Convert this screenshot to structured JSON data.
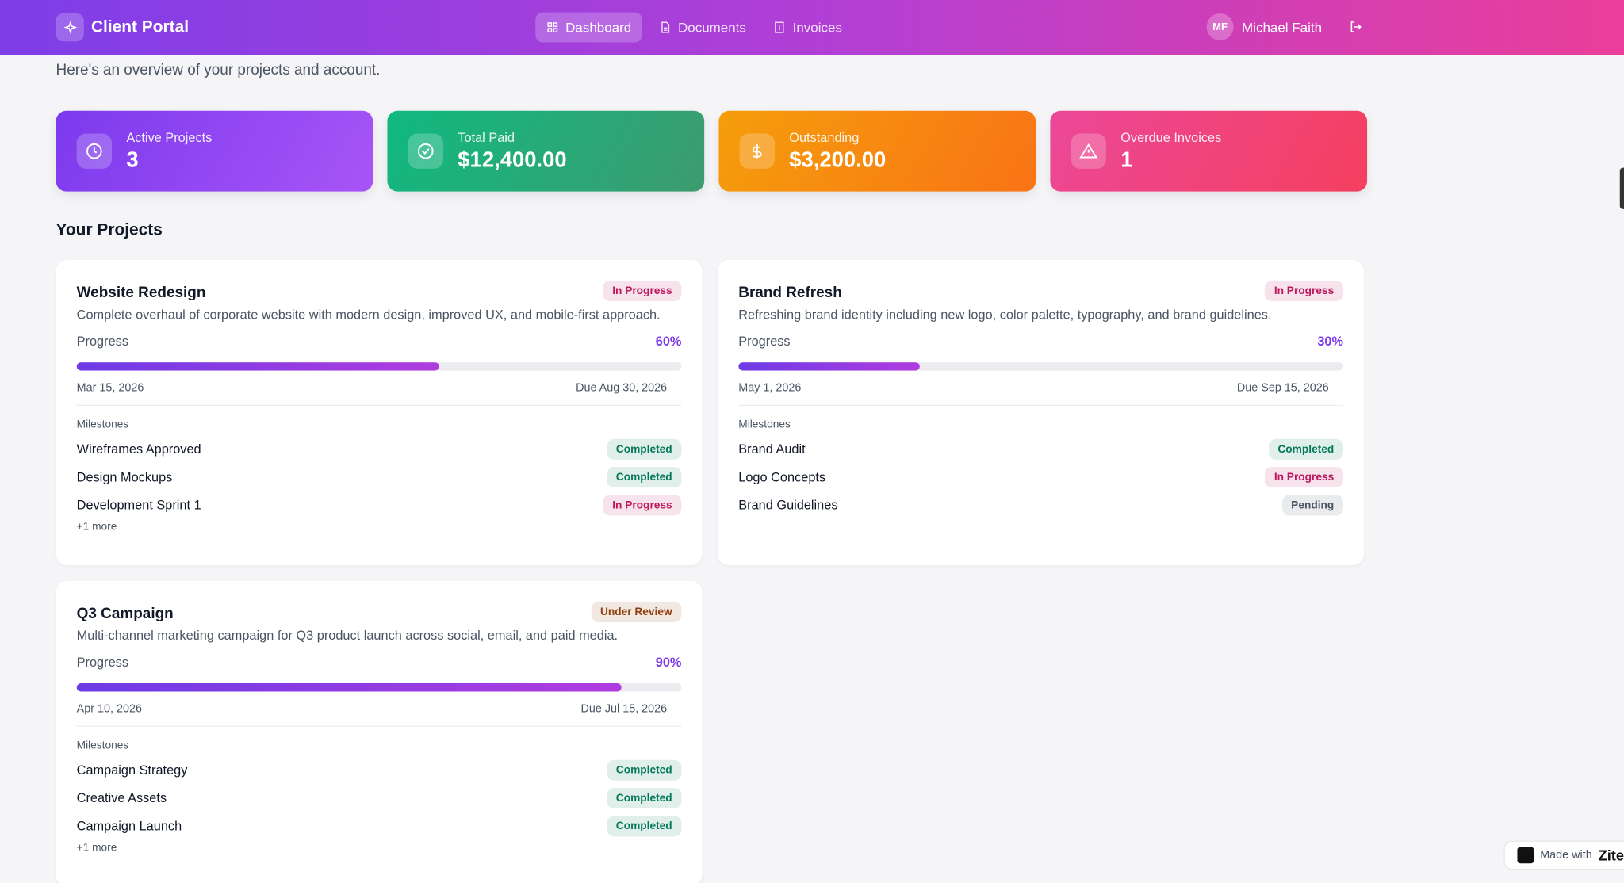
{
  "nav": {
    "brand": "Client Portal",
    "links": [
      "Dashboard",
      "Documents",
      "Invoices"
    ],
    "user_initials": "MF",
    "user_name": "Michael Faith"
  },
  "subtitle": "Here's an overview of your projects and account.",
  "stats": [
    {
      "label": "Active Projects",
      "value": 3,
      "color": "#7c3aed",
      "color2": "#a855f7"
    },
    {
      "label": "Total Paid",
      "value": "$12,400.00",
      "color": "#10b981",
      "color2": "#3d9b6f"
    },
    {
      "label": "Outstanding",
      "value": "$3,200.00",
      "color": "#f59e0b",
      "color2": "#f97316"
    },
    {
      "label": "Overdue Invoices",
      "value": 1,
      "color": "#ec4899",
      "color2": "#f43f5e"
    }
  ],
  "projects_heading": "Your Projects",
  "projects": [
    {
      "name": "Website Redesign",
      "status": {
        "label": "In Progress",
        "color": "#be185d"
      },
      "description": "Complete overhaul of corporate website with modern design, improved UX, and mobile-first approach.",
      "progress_label": "Progress",
      "progress": {
        "value": 60,
        "label": "60%"
      },
      "start": "Mar 15, 2026",
      "due": "Due Aug 30, 2026",
      "milestones_heading": "Milestones",
      "milestones": [
        {
          "name": "Wireframes Approved",
          "status": {
            "label": "Completed",
            "color": "#047857"
          }
        },
        {
          "name": "Design Mockups",
          "status": {
            "label": "Completed",
            "color": "#047857"
          }
        },
        {
          "name": "Development Sprint 1",
          "status": {
            "label": "In Progress",
            "color": "#be185d"
          }
        }
      ],
      "more": "+1 more"
    },
    {
      "name": "Brand Refresh",
      "status": {
        "label": "In Progress",
        "color": "#be185d"
      },
      "description": "Refreshing brand identity including new logo, color palette, typography, and brand guidelines.",
      "progress_label": "Progress",
      "progress": {
        "value": 30,
        "label": "30%"
      },
      "start": "May 1, 2026",
      "due": "Due Sep 15, 2026",
      "milestones_heading": "Milestones",
      "milestones": [
        {
          "name": "Brand Audit",
          "status": {
            "label": "Completed",
            "color": "#047857"
          }
        },
        {
          "name": "Logo Concepts",
          "status": {
            "label": "In Progress",
            "color": "#be185d"
          }
        },
        {
          "name": "Brand Guidelines",
          "status": {
            "label": "Pending",
            "color": "#4b5563"
          }
        }
      ]
    },
    {
      "name": "Q3 Campaign",
      "status": {
        "label": "Under Review",
        "color": "#92400e"
      },
      "description": "Multi-channel marketing campaign for Q3 product launch across social, email, and paid media.",
      "progress_label": "Progress",
      "progress": {
        "value": 90,
        "label": "90%"
      },
      "start": "Apr 10, 2026",
      "due": "Due Jul 15, 2026",
      "milestones_heading": "Milestones",
      "milestones": [
        {
          "name": "Campaign Strategy",
          "status": {
            "label": "Completed",
            "color": "#047857"
          }
        },
        {
          "name": "Creative Assets",
          "status": {
            "label": "Completed",
            "color": "#047857"
          }
        },
        {
          "name": "Campaign Launch",
          "status": {
            "label": "Completed",
            "color": "#047857"
          }
        }
      ],
      "more": "+1 more"
    }
  ],
  "badge": {
    "prefix": "Made with",
    "brand": "Zite"
  }
}
